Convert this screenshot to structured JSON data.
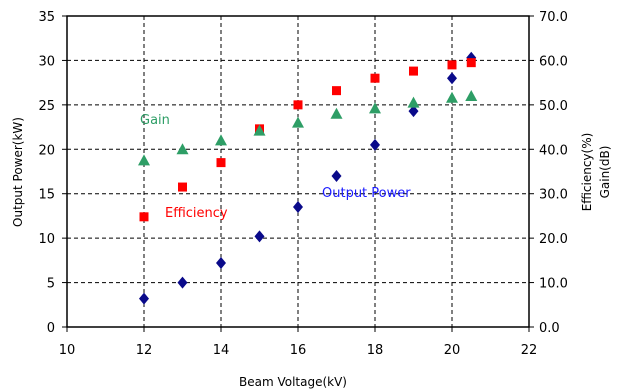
{
  "chart_data": {
    "type": "scatter",
    "title": "",
    "xlabel": "Beam Voltage(kV)",
    "ylabel_left": "Output Power(kW)",
    "ylabel_right_1": "Efficiency(%)",
    "ylabel_right_2": "Gain(dB)",
    "xlim": [
      10,
      22
    ],
    "ylim_left": [
      0,
      35
    ],
    "ylim_right": [
      0,
      70
    ],
    "x_ticks": [
      "10",
      "12",
      "14",
      "16",
      "18",
      "20",
      "22"
    ],
    "y_left_ticks": [
      "0",
      "5",
      "10",
      "15",
      "20",
      "25",
      "30",
      "35"
    ],
    "y_right_ticks": [
      "0.0",
      "10.0",
      "20.0",
      "30.0",
      "40.0",
      "50.0",
      "60.0",
      "70.0"
    ],
    "grid": true,
    "series": [
      {
        "name": "Output Power",
        "axis": "left",
        "marker": "diamond",
        "color": "#0a0a8a",
        "label_color": "#1a1aff",
        "x": [
          12,
          13,
          14,
          15,
          16,
          17,
          18,
          19,
          20,
          20.5
        ],
        "y": [
          3.2,
          5.0,
          7.2,
          10.2,
          13.5,
          17.0,
          20.5,
          24.3,
          28.0,
          30.3
        ]
      },
      {
        "name": "Efficiency",
        "axis": "right",
        "marker": "square",
        "color": "#ff0000",
        "label_color": "#ff0000",
        "x": [
          12,
          13,
          14,
          15,
          16,
          17,
          18,
          19,
          20,
          20.5
        ],
        "y": [
          24.8,
          31.5,
          37.0,
          44.6,
          50.0,
          53.2,
          56.0,
          57.6,
          59.0,
          59.5
        ]
      },
      {
        "name": "Gain",
        "axis": "right",
        "marker": "triangle",
        "color": "#2e9e66",
        "label_color": "#2e9e66",
        "x": [
          12,
          13,
          14,
          15,
          16,
          17,
          18,
          19,
          20,
          20.5
        ],
        "y": [
          37.5,
          40.0,
          42.0,
          44.2,
          46.0,
          48.0,
          49.2,
          50.5,
          51.6,
          52.0
        ]
      }
    ]
  }
}
